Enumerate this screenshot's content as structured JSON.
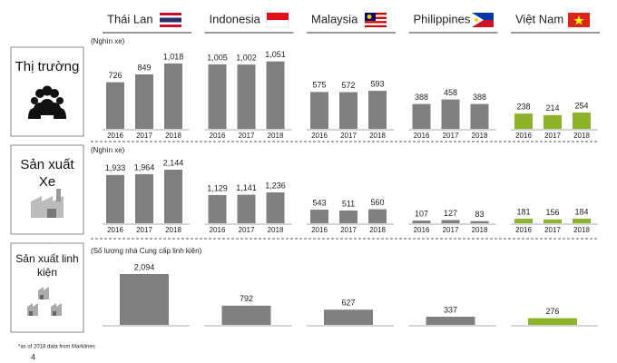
{
  "countries": [
    "Thái Lan",
    "Indonesia",
    "Malaysia",
    "Philippines",
    "Việt Nam"
  ],
  "colors": [
    "#7f7f7f",
    "#7f7f7f",
    "#7f7f7f",
    "#7f7f7f",
    "#8db32b"
  ],
  "chart_data": [
    {
      "type": "bar",
      "title": "Thị trường",
      "subtitle": "(Nghìn xe)",
      "series": [
        {
          "name": "2016",
          "values": [
            726,
            1005,
            575,
            388,
            238
          ],
          "value_labels": [
            "726",
            "1,005",
            "575",
            "388",
            "238"
          ]
        },
        {
          "name": "2017",
          "values": [
            849,
            1002,
            572,
            458,
            214
          ],
          "value_labels": [
            "849",
            "1,002",
            "572",
            "458",
            "214"
          ]
        },
        {
          "name": "2018",
          "values": [
            1018,
            1051,
            593,
            388,
            254
          ],
          "value_labels": [
            "1,018",
            "1,051",
            "593",
            "388",
            "254"
          ]
        }
      ]
    },
    {
      "type": "bar",
      "title": "Sản xuất Xe",
      "subtitle": "(Nghìn xe)",
      "series": [
        {
          "name": "2016",
          "values": [
            1933,
            1129,
            543,
            107,
            181
          ],
          "value_labels": [
            "1,933",
            "1,129",
            "543",
            "107",
            "181"
          ]
        },
        {
          "name": "2017",
          "values": [
            1964,
            1141,
            511,
            127,
            156
          ],
          "value_labels": [
            "1,964",
            "1,141",
            "511",
            "127",
            "156"
          ]
        },
        {
          "name": "2018",
          "values": [
            2144,
            1236,
            560,
            83,
            184
          ],
          "value_labels": [
            "2,144",
            "1,236",
            "560",
            "83",
            "184"
          ]
        }
      ]
    },
    {
      "type": "bar",
      "title": "Sản xuất linh kiện",
      "subtitle": "(Số lượng nhà Cung cấp linh kiện)",
      "values": [
        2094,
        792,
        627,
        337,
        276
      ],
      "value_labels": [
        "2,094",
        "792",
        "627",
        "337",
        "276"
      ]
    }
  ],
  "footnote": "*as of 2018 data from Marklines",
  "page": "4"
}
